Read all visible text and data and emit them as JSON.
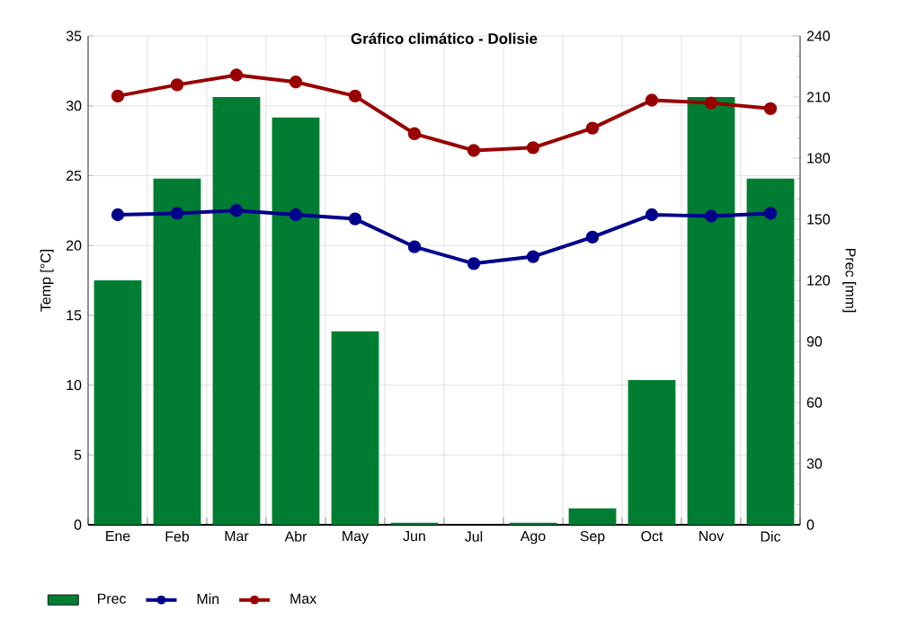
{
  "chart_data": {
    "type": "bar",
    "title": "Gráfico climático - Dolisie",
    "categories": [
      "Ene",
      "Feb",
      "Mar",
      "Abr",
      "May",
      "Jun",
      "Jul",
      "Ago",
      "Sep",
      "Oct",
      "Nov",
      "Dic"
    ],
    "series": [
      {
        "name": "Prec",
        "axis": "y2",
        "color": "#007d32",
        "values": [
          120,
          170,
          210,
          200,
          95,
          1,
          0,
          1,
          8,
          71,
          210,
          170
        ]
      },
      {
        "name": "Min",
        "type": "line",
        "color": "#00008b",
        "values": [
          22.2,
          22.3,
          22.5,
          22.2,
          21.9,
          19.9,
          18.7,
          19.2,
          20.6,
          22.2,
          22.1,
          22.3
        ]
      },
      {
        "name": "Max",
        "type": "line",
        "color": "#990000",
        "values": [
          30.7,
          31.5,
          32.2,
          31.7,
          30.7,
          28.0,
          26.8,
          27.0,
          28.4,
          30.4,
          30.2,
          29.8
        ]
      }
    ],
    "ylabel": "Temp [°C]",
    "y2label": "Prec [mm]",
    "ylim": [
      0,
      35
    ],
    "yticks": [
      0,
      5,
      10,
      15,
      20,
      25,
      30,
      35
    ],
    "y2lim": [
      0,
      240
    ],
    "y2ticks": [
      0,
      30,
      60,
      90,
      120,
      150,
      180,
      210,
      240
    ],
    "grid": true,
    "legend": "bottom left",
    "marker": "circle",
    "line_style": "solid"
  }
}
